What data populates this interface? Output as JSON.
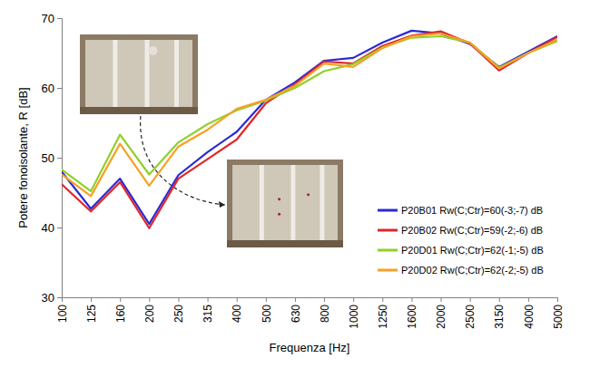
{
  "chart_data": {
    "type": "line",
    "y_label": "Potere fonoisolante, R [dB]",
    "x_label": "Frequenza [Hz]",
    "categories": [
      "100",
      "125",
      "160",
      "200",
      "250",
      "315",
      "400",
      "500",
      "630",
      "800",
      "1000",
      "1250",
      "1600",
      "2000",
      "2500",
      "3150",
      "4000",
      "5000"
    ],
    "series": [
      {
        "name": "P20B01 Rw(C;Ctr)=60(-3;-7) dB",
        "color": "#2a2ad4",
        "values": [
          48,
          42.7,
          47,
          40.5,
          47.5,
          50.8,
          53.7,
          58.3,
          60.8,
          63.9,
          64.3,
          66.5,
          68.2,
          67.8,
          66.3,
          63,
          65.2,
          67.4
        ]
      },
      {
        "name": "P20B02 Rw(C;Ctr)=59(-2;-6) dB",
        "color": "#e0262a",
        "values": [
          46.2,
          42.3,
          46.5,
          39.9,
          47,
          49.8,
          52.6,
          57.8,
          60.5,
          63.8,
          63.5,
          66,
          67.5,
          68.1,
          66.4,
          62.5,
          65,
          67.3
        ]
      },
      {
        "name": "P20D01 Rw(C;Ctr)=62(-1;-5) dB",
        "color": "#8fd12a",
        "values": [
          48.3,
          45.2,
          53.3,
          47.6,
          52.2,
          54.8,
          56.8,
          58.2,
          60,
          62.4,
          63.4,
          65.8,
          67.2,
          67.4,
          66.5,
          62.9,
          65,
          66.7
        ]
      },
      {
        "name": "P20D02 Rw(C;Ctr)=62(-2;-5) dB",
        "color": "#f5a125",
        "values": [
          47.6,
          44.5,
          52,
          46,
          51.6,
          54,
          57,
          58.3,
          60.3,
          63.5,
          63,
          65.7,
          67.4,
          67.8,
          66.5,
          62.8,
          65,
          66.9
        ]
      }
    ],
    "ylim": [
      30,
      70
    ],
    "yticks": [
      30,
      40,
      50,
      60,
      70
    ],
    "grid": false,
    "legend": "lower right"
  }
}
